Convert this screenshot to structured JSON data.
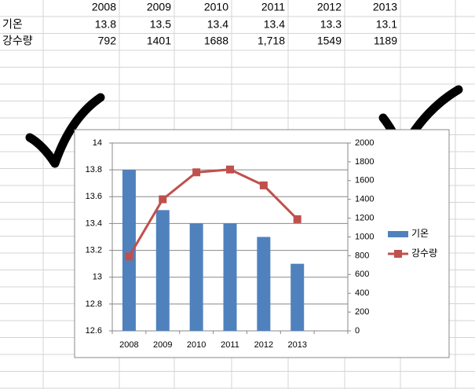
{
  "table": {
    "header": [
      "2008",
      "2009",
      "2010",
      "2011",
      "2012",
      "2013"
    ],
    "rows": [
      [
        "기온",
        "13.8",
        "13.5",
        "13.4",
        "13.4",
        "13.3",
        "13.1"
      ],
      [
        "강수량",
        "792",
        "1401",
        "1688",
        "1,718",
        "1549",
        "1189"
      ]
    ]
  },
  "chart_data": {
    "type": "combo",
    "categories": [
      "2008",
      "2009",
      "2010",
      "2011",
      "2012",
      "2013",
      null
    ],
    "series": [
      {
        "name": "기온",
        "color": "#4f81bd",
        "type": "bar",
        "axis": "y",
        "values": [
          13.8,
          13.5,
          13.4,
          13.4,
          13.3,
          13.1,
          null
        ]
      },
      {
        "name": "강수량",
        "color": "#c0504d",
        "type": "line",
        "axis": "y2",
        "values": [
          792,
          1401,
          1688,
          1718,
          1549,
          1189,
          null
        ]
      }
    ],
    "ylim": [
      12.6,
      14
    ],
    "yticks": [
      12.6,
      12.8,
      13,
      13.2,
      13.4,
      13.6,
      13.8,
      14
    ],
    "y2lim": [
      0,
      2000
    ],
    "y2ticks": [
      0,
      200,
      400,
      600,
      800,
      1000,
      1200,
      1400,
      1600,
      1800,
      2000
    ],
    "grid": true,
    "legend": "right"
  }
}
